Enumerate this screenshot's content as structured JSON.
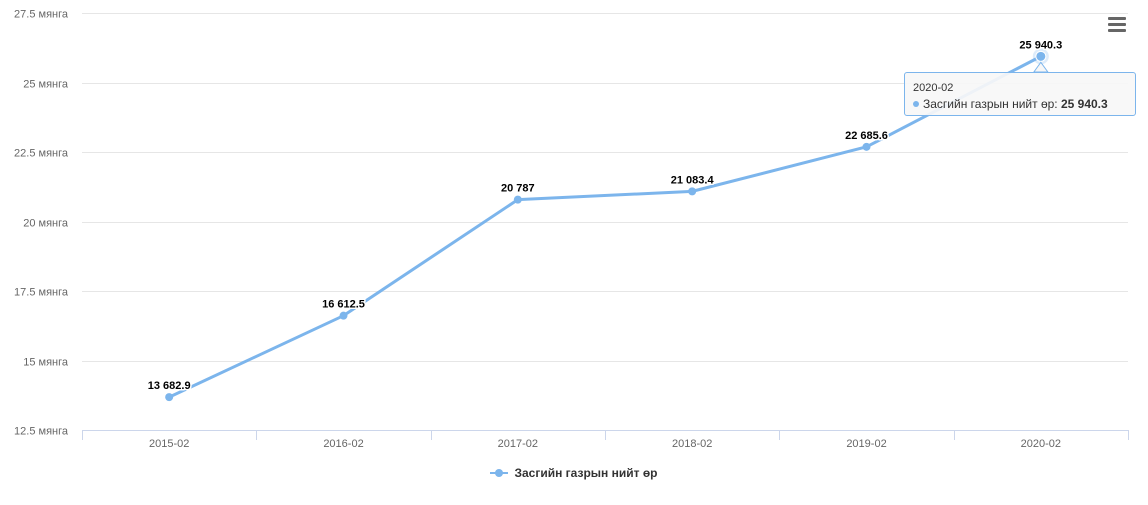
{
  "chart_data": {
    "type": "line",
    "categories": [
      "2015-02",
      "2016-02",
      "2017-02",
      "2018-02",
      "2019-02",
      "2020-02"
    ],
    "series": [
      {
        "name": "Засгийн газрын нийт өр",
        "values": [
          13682.9,
          16612.5,
          20787,
          21083.4,
          22685.6,
          25940.3
        ],
        "labels": [
          "13 682.9",
          "16 612.5",
          "20 787",
          "21 083.4",
          "22 685.6",
          "25 940.3"
        ],
        "color": "#7cb5ec"
      }
    ],
    "y_ticks": [
      {
        "value": 12500,
        "label": "12.5 мянга"
      },
      {
        "value": 15000,
        "label": "15 мянга"
      },
      {
        "value": 17500,
        "label": "17.5 мянга"
      },
      {
        "value": 20000,
        "label": "20 мянга"
      },
      {
        "value": 22500,
        "label": "22.5 мянга"
      },
      {
        "value": 25000,
        "label": "25 мянга"
      },
      {
        "value": 27500,
        "label": "27.5 мянга"
      }
    ],
    "ylim": [
      12500,
      27500
    ],
    "grid": true,
    "legend_position": "bottom-center"
  },
  "tooltip": {
    "title": "2020-02",
    "series_name": "Засгийн газрын нийт өр",
    "separator": ": ",
    "value": "25 940.3"
  },
  "menu": {
    "icon": "hamburger-menu-icon"
  }
}
